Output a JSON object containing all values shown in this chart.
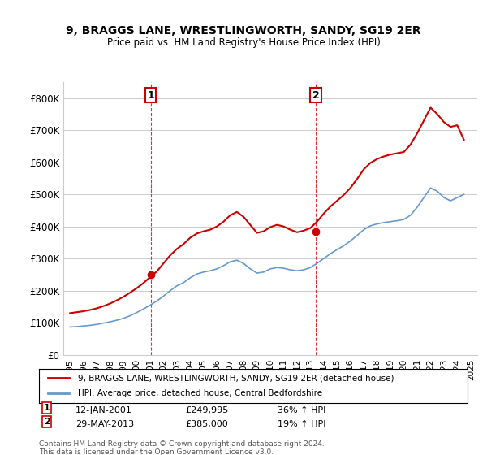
{
  "title": "9, BRAGGS LANE, WRESTLINGWORTH, SANDY, SG19 2ER",
  "subtitle": "Price paid vs. HM Land Registry's House Price Index (HPI)",
  "ylabel_ticks": [
    "£0",
    "£100K",
    "£200K",
    "£300K",
    "£400K",
    "£500K",
    "£600K",
    "£700K",
    "£800K"
  ],
  "ylim": [
    0,
    850000
  ],
  "xlim_start": 1995,
  "xlim_end": 2025.5,
  "sale1_x": 2001.04,
  "sale1_y": 249995,
  "sale1_label": "1",
  "sale1_date": "12-JAN-2001",
  "sale1_price": "£249,995",
  "sale1_hpi": "36% ↑ HPI",
  "sale2_x": 2013.41,
  "sale2_y": 385000,
  "sale2_label": "2",
  "sale2_date": "29-MAY-2013",
  "sale2_price": "£385,000",
  "sale2_hpi": "19% ↑ HPI",
  "line1_color": "#cc0000",
  "line2_color": "#6699cc",
  "marker_color": "#cc0000",
  "vline_color": "#cc0000",
  "background_color": "#ffffff",
  "grid_color": "#cccccc",
  "legend_line1": "9, BRAGGS LANE, WRESTLINGWORTH, SANDY, SG19 2ER (detached house)",
  "legend_line2": "HPI: Average price, detached house, Central Bedfordshire",
  "footnote": "Contains HM Land Registry data © Crown copyright and database right 2024.\nThis data is licensed under the Open Government Licence v3.0.",
  "hpi_years": [
    1995,
    1995.5,
    1996,
    1996.5,
    1997,
    1997.5,
    1998,
    1998.5,
    1999,
    1999.5,
    2000,
    2000.5,
    2001,
    2001.5,
    2002,
    2002.5,
    2003,
    2003.5,
    2004,
    2004.5,
    2005,
    2005.5,
    2006,
    2006.5,
    2007,
    2007.5,
    2008,
    2008.5,
    2009,
    2009.5,
    2010,
    2010.5,
    2011,
    2011.5,
    2012,
    2012.5,
    2013,
    2013.5,
    2014,
    2014.5,
    2015,
    2015.5,
    2016,
    2016.5,
    2017,
    2017.5,
    2018,
    2018.5,
    2019,
    2019.5,
    2020,
    2020.5,
    2021,
    2021.5,
    2022,
    2022.5,
    2023,
    2023.5,
    2024,
    2024.5
  ],
  "hpi_values": [
    87000,
    88000,
    90000,
    92000,
    95000,
    99000,
    103000,
    108000,
    114000,
    122000,
    132000,
    143000,
    155000,
    168000,
    183000,
    200000,
    215000,
    225000,
    240000,
    252000,
    258000,
    262000,
    268000,
    278000,
    290000,
    295000,
    285000,
    268000,
    255000,
    258000,
    268000,
    272000,
    270000,
    265000,
    262000,
    265000,
    272000,
    285000,
    300000,
    315000,
    328000,
    340000,
    355000,
    372000,
    390000,
    402000,
    408000,
    412000,
    415000,
    418000,
    422000,
    435000,
    460000,
    490000,
    520000,
    510000,
    490000,
    480000,
    490000,
    500000
  ],
  "price_years": [
    1995,
    1995.5,
    1996,
    1996.5,
    1997,
    1997.5,
    1998,
    1998.5,
    1999,
    1999.5,
    2000,
    2000.5,
    2001,
    2001.5,
    2002,
    2002.5,
    2003,
    2003.5,
    2004,
    2004.5,
    2005,
    2005.5,
    2006,
    2006.5,
    2007,
    2007.5,
    2008,
    2008.5,
    2009,
    2009.5,
    2010,
    2010.5,
    2011,
    2011.5,
    2012,
    2012.5,
    2013,
    2013.5,
    2014,
    2014.5,
    2015,
    2015.5,
    2016,
    2016.5,
    2017,
    2017.5,
    2018,
    2018.5,
    2019,
    2019.5,
    2020,
    2020.5,
    2021,
    2021.5,
    2022,
    2022.5,
    2023,
    2023.5,
    2024,
    2024.5
  ],
  "price_values": [
    130000,
    133000,
    136000,
    140000,
    145000,
    152000,
    160000,
    170000,
    181000,
    194000,
    208000,
    224000,
    242000,
    260000,
    285000,
    310000,
    330000,
    345000,
    365000,
    378000,
    385000,
    390000,
    400000,
    415000,
    435000,
    445000,
    430000,
    405000,
    380000,
    385000,
    398000,
    405000,
    400000,
    390000,
    382000,
    387000,
    395000,
    415000,
    440000,
    462000,
    480000,
    498000,
    520000,
    548000,
    578000,
    598000,
    610000,
    618000,
    624000,
    628000,
    632000,
    655000,
    690000,
    730000,
    770000,
    750000,
    725000,
    710000,
    715000,
    670000
  ]
}
